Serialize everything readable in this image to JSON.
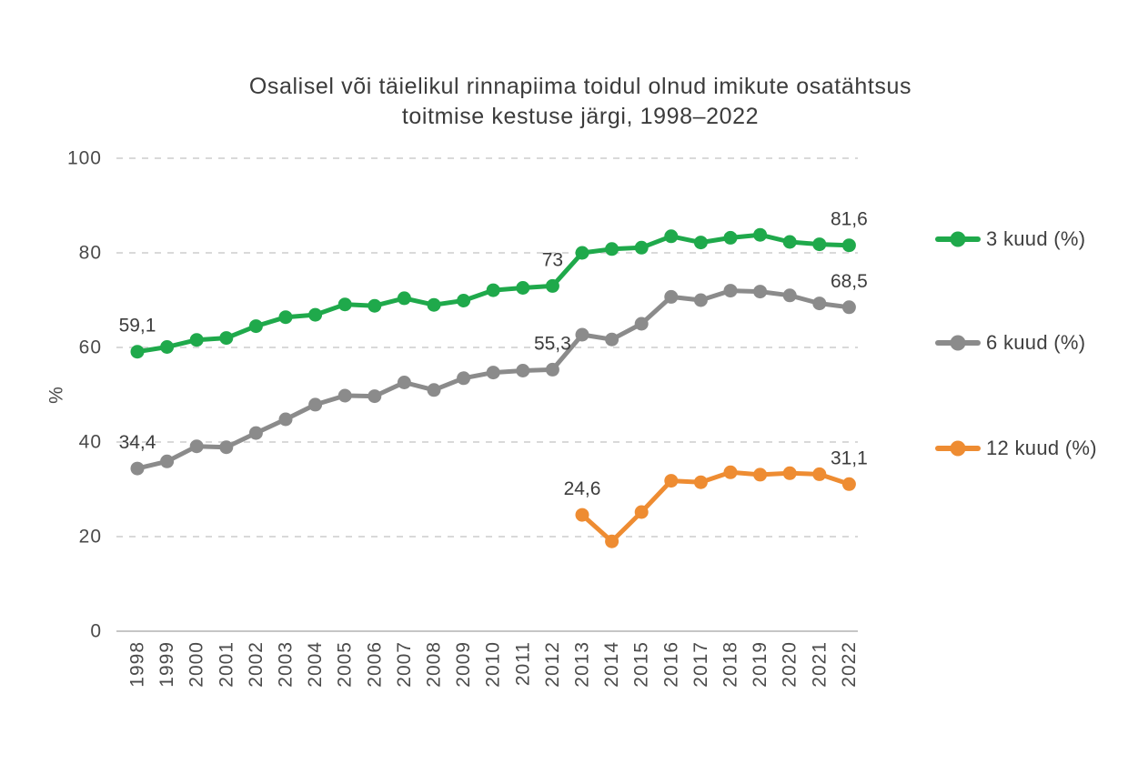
{
  "title": {
    "line1": "Osalisel või täielikul rinnapiima toidul olnud imikute osatähtsus",
    "line2": "toitmise kestuse järgi, 1998–2022"
  },
  "colors": {
    "green": "#1FA94B",
    "gray": "#8B8B8B",
    "orange": "#EE8C32",
    "grid": "#D9D9D9",
    "axis": "#C6C6C6",
    "tick_text": "#4A4A4A",
    "label_text": "#3D3D3D"
  },
  "chart_data": {
    "type": "line",
    "title": "Osalisel või täielikul rinnapiima toidul olnud imikute osatähtsus toitmise kestuse järgi, 1998–2022",
    "xlabel": "",
    "ylabel": "%",
    "ylim": [
      0,
      100
    ],
    "yticks": [
      0,
      20,
      40,
      60,
      80,
      100
    ],
    "grid": "horizontal-dashed",
    "legend_position": "right",
    "x": [
      1998,
      1999,
      2000,
      2001,
      2002,
      2003,
      2004,
      2005,
      2006,
      2007,
      2008,
      2009,
      2010,
      2011,
      2012,
      2013,
      2014,
      2015,
      2016,
      2017,
      2018,
      2019,
      2020,
      2021,
      2022
    ],
    "series": [
      {
        "name": "3 kuud (%)",
        "color": "#1FA94B",
        "values": [
          59.1,
          60.1,
          61.6,
          62.0,
          64.5,
          66.4,
          66.9,
          69.1,
          68.8,
          70.4,
          69.0,
          69.9,
          72.1,
          72.6,
          73,
          80.0,
          80.8,
          81.1,
          83.5,
          82.2,
          83.2,
          83.8,
          82.3,
          81.8,
          81.6
        ]
      },
      {
        "name": "6 kuud (%)",
        "color": "#8B8B8B",
        "values": [
          34.4,
          35.9,
          39.1,
          38.9,
          41.9,
          44.8,
          47.9,
          49.8,
          49.7,
          52.6,
          51.0,
          53.5,
          54.7,
          55.1,
          55.3,
          62.7,
          61.7,
          65.0,
          70.7,
          70.0,
          72.0,
          71.8,
          71.0,
          69.3,
          68.5
        ]
      },
      {
        "name": "12 kuud (%)",
        "color": "#EE8C32",
        "values": [
          null,
          null,
          null,
          null,
          null,
          null,
          null,
          null,
          null,
          null,
          null,
          null,
          null,
          null,
          null,
          24.6,
          19.0,
          25.2,
          31.8,
          31.5,
          33.6,
          33.1,
          33.4,
          33.2,
          31.1
        ]
      }
    ],
    "point_labels": [
      {
        "series": 0,
        "year": 1998,
        "text": "59,1"
      },
      {
        "series": 0,
        "year": 2012,
        "text": "73"
      },
      {
        "series": 0,
        "year": 2022,
        "text": "81,6"
      },
      {
        "series": 1,
        "year": 1998,
        "text": "34,4"
      },
      {
        "series": 1,
        "year": 2012,
        "text": "55,3"
      },
      {
        "series": 1,
        "year": 2022,
        "text": "68,5"
      },
      {
        "series": 2,
        "year": 2013,
        "text": "24,6"
      },
      {
        "series": 2,
        "year": 2022,
        "text": "31,1"
      }
    ]
  }
}
